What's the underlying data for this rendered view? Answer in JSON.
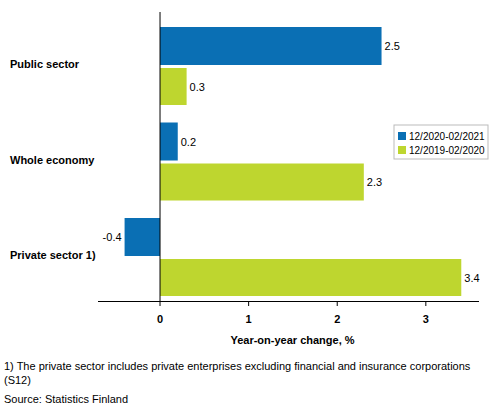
{
  "chart_data": {
    "type": "bar",
    "orientation": "horizontal",
    "categories": [
      "Public sector",
      "Whole economy",
      "Private sector 1)"
    ],
    "series": [
      {
        "name": "12/2020-02/2021",
        "color": "#0a6fb4",
        "values": [
          2.5,
          0.2,
          -0.4
        ]
      },
      {
        "name": "12/2019-02/2020",
        "color": "#bed62f",
        "values": [
          0.3,
          2.3,
          3.4
        ]
      }
    ],
    "x_label": "Year-on-year change, %",
    "xlim": [
      -0.7,
      3.6
    ],
    "xticks": [
      0,
      1,
      2,
      3
    ],
    "grid": false,
    "legend": "right",
    "data_labels": true,
    "footnote": "1) The private sector includes private enterprises excluding financial and insurance corporations (S12)",
    "source": "Source: Statistics Finland"
  }
}
